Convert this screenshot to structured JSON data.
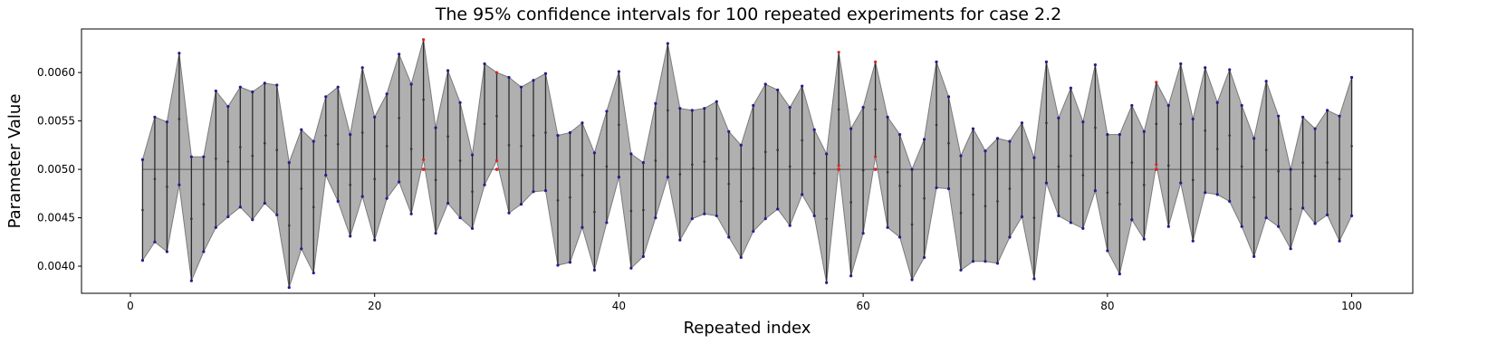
{
  "chart_data": {
    "type": "line",
    "title": "The 95% confidence intervals for 100 repeated experiments for case 2.2",
    "xlabel": "Repeated index",
    "ylabel": "Parameter Value",
    "xlim": [
      -4,
      105
    ],
    "ylim": [
      0.00372,
      0.00645
    ],
    "xticks": [
      0,
      20,
      40,
      60,
      80,
      100
    ],
    "yticks": [
      0.004,
      0.0045,
      0.005,
      0.0055,
      0.006
    ],
    "xtick_labels": [
      "0",
      "20",
      "40",
      "60",
      "80",
      "100"
    ],
    "ytick_labels": [
      "0.0040",
      "0.0045",
      "0.0050",
      "0.0055",
      "0.0060"
    ],
    "reference_value": 0.005,
    "grid": false,
    "colors": {
      "band_fill": "#b0b0b0",
      "band_edge": "#7a7a7a",
      "interval_line": "#2b2b2b",
      "reference_line": "#555555",
      "point_covering": "#1f1f8f",
      "point_not_covering": "#d62728",
      "estimate_point": "#333333"
    },
    "index": [
      1,
      2,
      3,
      4,
      5,
      6,
      7,
      8,
      9,
      10,
      11,
      12,
      13,
      14,
      15,
      16,
      17,
      18,
      19,
      20,
      21,
      22,
      23,
      24,
      25,
      26,
      27,
      28,
      29,
      30,
      31,
      32,
      33,
      34,
      35,
      36,
      37,
      38,
      39,
      40,
      41,
      42,
      43,
      44,
      45,
      46,
      47,
      48,
      49,
      50,
      51,
      52,
      53,
      54,
      55,
      56,
      57,
      58,
      59,
      60,
      61,
      62,
      63,
      64,
      65,
      66,
      67,
      68,
      69,
      70,
      71,
      72,
      73,
      74,
      75,
      76,
      77,
      78,
      79,
      80,
      81,
      82,
      83,
      84,
      85,
      86,
      87,
      88,
      89,
      90,
      91,
      92,
      93,
      94,
      95,
      96,
      97,
      98,
      99,
      100
    ],
    "upper": [
      0.0051,
      0.00554,
      0.00549,
      0.0062,
      0.00513,
      0.00513,
      0.00581,
      0.00565,
      0.00585,
      0.0058,
      0.00589,
      0.00587,
      0.00507,
      0.00541,
      0.00529,
      0.00575,
      0.00585,
      0.00536,
      0.00605,
      0.00554,
      0.00578,
      0.00619,
      0.00588,
      0.00634,
      0.00543,
      0.00602,
      0.00569,
      0.00515,
      0.00609,
      0.006,
      0.00595,
      0.00585,
      0.00592,
      0.00599,
      0.00535,
      0.00538,
      0.00548,
      0.00517,
      0.0056,
      0.00601,
      0.00516,
      0.00507,
      0.00568,
      0.0063,
      0.00563,
      0.00561,
      0.00563,
      0.0057,
      0.00539,
      0.00525,
      0.00566,
      0.00588,
      0.00582,
      0.00564,
      0.00586,
      0.00541,
      0.00516,
      0.00621,
      0.00542,
      0.00564,
      0.00611,
      0.00554,
      0.00536,
      0.005,
      0.00531,
      0.00611,
      0.00575,
      0.00514,
      0.00542,
      0.00519,
      0.00532,
      0.00529,
      0.00548,
      0.00512,
      0.00611,
      0.00553,
      0.00584,
      0.00549,
      0.00608,
      0.00536,
      0.00536,
      0.00566,
      0.00539,
      0.0059,
      0.00566,
      0.00609,
      0.00552,
      0.00605,
      0.00569,
      0.00603,
      0.00566,
      0.00532,
      0.00591,
      0.00555,
      0.005,
      0.00554,
      0.00542,
      0.00561,
      0.00555,
      0.00595
    ],
    "lower": [
      0.00406,
      0.00425,
      0.00415,
      0.00484,
      0.00385,
      0.00415,
      0.0044,
      0.00451,
      0.00461,
      0.00448,
      0.00465,
      0.00453,
      0.00378,
      0.00418,
      0.00393,
      0.00494,
      0.00467,
      0.00431,
      0.00472,
      0.00427,
      0.0047,
      0.00487,
      0.00454,
      0.0051,
      0.00434,
      0.00465,
      0.0045,
      0.00439,
      0.00484,
      0.00509,
      0.00455,
      0.00464,
      0.00477,
      0.00478,
      0.00401,
      0.00404,
      0.0044,
      0.00396,
      0.00445,
      0.00492,
      0.00398,
      0.0041,
      0.0045,
      0.00492,
      0.00427,
      0.00449,
      0.00454,
      0.00452,
      0.0043,
      0.00409,
      0.00436,
      0.00449,
      0.00459,
      0.00442,
      0.00474,
      0.00452,
      0.00383,
      0.00504,
      0.0039,
      0.00434,
      0.00513,
      0.0044,
      0.0043,
      0.00386,
      0.00409,
      0.00481,
      0.0048,
      0.00396,
      0.00405,
      0.00405,
      0.00403,
      0.0043,
      0.00451,
      0.00387,
      0.00486,
      0.00452,
      0.00445,
      0.00439,
      0.00478,
      0.00416,
      0.00392,
      0.00448,
      0.00428,
      0.00505,
      0.00441,
      0.00486,
      0.00426,
      0.00476,
      0.00474,
      0.00467,
      0.00441,
      0.0041,
      0.0045,
      0.00441,
      0.00418,
      0.0046,
      0.00444,
      0.00453,
      0.00426,
      0.00452
    ],
    "estimate": [
      0.00458,
      0.0049,
      0.00482,
      0.00552,
      0.00449,
      0.00464,
      0.00511,
      0.00508,
      0.00523,
      0.00514,
      0.00527,
      0.0052,
      0.00442,
      0.0048,
      0.00461,
      0.00535,
      0.00526,
      0.00484,
      0.00538,
      0.0049,
      0.00524,
      0.00553,
      0.00521,
      0.00572,
      0.00489,
      0.00534,
      0.00509,
      0.00477,
      0.00547,
      0.00555,
      0.00525,
      0.00524,
      0.00535,
      0.00538,
      0.00468,
      0.00471,
      0.00494,
      0.00456,
      0.00503,
      0.00546,
      0.00457,
      0.00458,
      0.00509,
      0.00561,
      0.00495,
      0.00505,
      0.00508,
      0.00511,
      0.00485,
      0.00467,
      0.00501,
      0.00518,
      0.0052,
      0.00503,
      0.0053,
      0.00496,
      0.00449,
      0.00562,
      0.00466,
      0.00499,
      0.00562,
      0.00497,
      0.00483,
      0.00443,
      0.0047,
      0.00546,
      0.00527,
      0.00455,
      0.00474,
      0.00462,
      0.00467,
      0.0048,
      0.005,
      0.0045,
      0.00548,
      0.00503,
      0.00514,
      0.00494,
      0.00543,
      0.00476,
      0.00464,
      0.00507,
      0.00484,
      0.00547,
      0.00504,
      0.00547,
      0.00489,
      0.0054,
      0.00521,
      0.00535,
      0.00503,
      0.00471,
      0.0052,
      0.00498,
      0.00459,
      0.00507,
      0.00493,
      0.00507,
      0.0049,
      0.00524
    ]
  }
}
